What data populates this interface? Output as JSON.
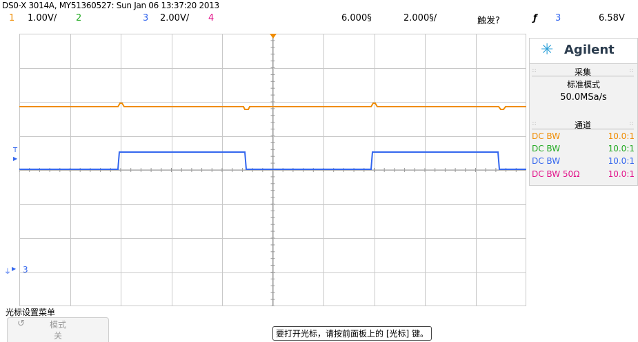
{
  "header": {
    "title": "DS0-X 3014A, MY51360527: Sun Jan 06 13:37:20 2013",
    "ch1_num": "1",
    "ch1_scale": "1.00V/",
    "ch2_num": "2",
    "ch3_num": "3",
    "ch3_scale": "2.00V/",
    "ch4_num": "4",
    "time_delay": "6.000§",
    "time_scale": "2.000§/",
    "trigger_label": "触发?",
    "trigger_icon": "rising-edge-icon",
    "trigger_source": "3",
    "trigger_level": "6.58V"
  },
  "colors": {
    "ch1": "#f08c00",
    "ch2": "#22aa22",
    "ch3": "#3366ee",
    "ch4": "#e2138a",
    "grid": "#c8c8c8"
  },
  "screen": {
    "ground_marker_label": "3",
    "trig_level_marker": "T"
  },
  "sidebar": {
    "logo_text": "Agilent",
    "acquisition_title": "采集",
    "acquisition_mode": "标准模式",
    "sample_rate": "50.0MSa/s",
    "channels_title": "通道",
    "channels": [
      {
        "left": "DC BW",
        "right": "10.0:1",
        "color": "#f08c00"
      },
      {
        "left": "DC BW",
        "right": "10.0:1",
        "color": "#22aa22"
      },
      {
        "left": "DC BW",
        "right": "10.0:1",
        "color": "#3366ee"
      },
      {
        "left": "DC BW 50Ω",
        "right": "10.0:1",
        "color": "#e2138a"
      }
    ]
  },
  "menu": {
    "title": "光标设置菜单",
    "mode_button_line1": "模式",
    "mode_button_line2": "关",
    "hint": "要打开光标，请按前面板上的 [光标] 键。"
  }
}
